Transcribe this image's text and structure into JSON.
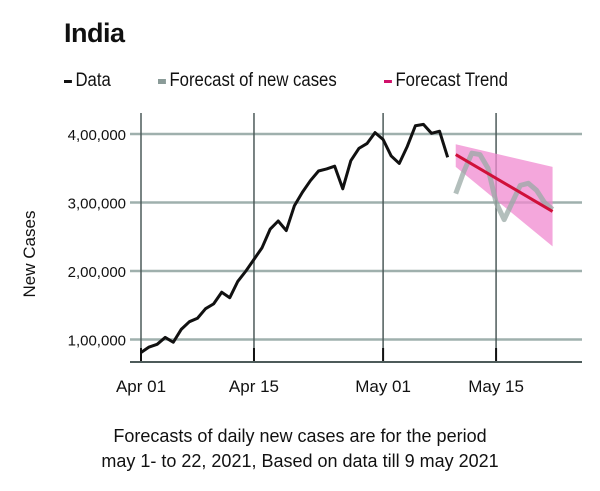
{
  "chart_data": {
    "type": "line",
    "title": "India",
    "ylabel": "New Cases",
    "xlabel": "",
    "x_ticks": [
      {
        "label": "Apr 01",
        "date": "2021-04-01"
      },
      {
        "label": "Apr 15",
        "date": "2021-04-15"
      },
      {
        "label": "May 01",
        "date": "2021-05-01"
      },
      {
        "label": "May 15",
        "date": "2021-05-15"
      }
    ],
    "y_ticks": [
      {
        "label": "1,00,000",
        "value": 100000
      },
      {
        "label": "2,00,000",
        "value": 200000
      },
      {
        "label": "3,00,000",
        "value": 300000
      },
      {
        "label": "4,00,000",
        "value": 400000
      }
    ],
    "ylim": [
      66000,
      420000
    ],
    "grid": true,
    "legend_position": "top",
    "series": [
      {
        "name": "Data",
        "color": "#111111",
        "start_date": "2021-04-01",
        "values": [
          81000,
          89000,
          93000,
          103000,
          96000,
          115000,
          126000,
          131000,
          145000,
          152000,
          169000,
          161000,
          185000,
          200000,
          217000,
          234000,
          261000,
          273000,
          259000,
          295000,
          315000,
          332000,
          346000,
          349000,
          353000,
          320000,
          361000,
          379000,
          386000,
          402000,
          392000,
          368000,
          357000,
          382000,
          412000,
          414000,
          401000,
          404000,
          366000
        ]
      },
      {
        "name": "Forecast of new cases",
        "color": "#9aa9a6",
        "start_date": "2021-05-10",
        "values": [
          313000,
          345000,
          372000,
          370000,
          350000,
          300000,
          275000,
          300000,
          325000,
          328000,
          318000,
          300000,
          290000
        ]
      },
      {
        "name": "Forecast Trend",
        "color": "#d0103a",
        "band_color": "#f08ad0",
        "start_date": "2021-05-10",
        "end_date": "2021-05-22",
        "values": [
          370000,
          287000
        ],
        "band_upper": [
          385000,
          352000
        ],
        "band_lower": [
          352000,
          236000
        ]
      }
    ]
  },
  "caption": {
    "line1": "Forecasts of daily new cases are for the period",
    "line2": "may 1- to 22, 2021, Based on data till 9 may 2021"
  }
}
